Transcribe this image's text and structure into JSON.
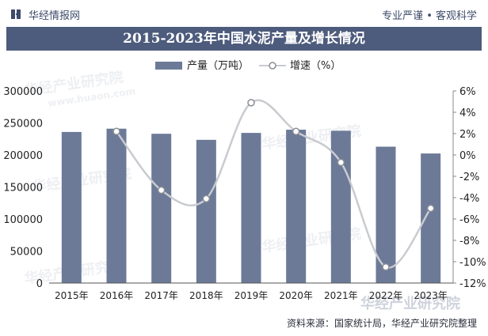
{
  "header": {
    "brand": "华经情报网",
    "slogan": "专业严谨 • 客观科学"
  },
  "watermark": {
    "cn": "华经产业研究院",
    "url": "www.huaon.com"
  },
  "footer": {
    "source": "资料来源：国家统计局，华经产业研究院整理"
  },
  "colors": {
    "bar": "#6c7a98",
    "line": "#c9cbd0",
    "title_bg": "#4d5b7c"
  },
  "chart_data": {
    "type": "bar",
    "title": "2015-2023年中国水泥产量及增长情况",
    "categories": [
      "2015年",
      "2016年",
      "2017年",
      "2018年",
      "2019年",
      "2020年",
      "2021年",
      "2022年",
      "2023年"
    ],
    "series": [
      {
        "name": "产量（万吨）",
        "type": "bar",
        "axis": "left",
        "values": [
          235919,
          241031,
          233084,
          223610,
          234431,
          239470,
          237809,
          212927,
          202300
        ]
      },
      {
        "name": "增速（%）",
        "type": "line",
        "axis": "right",
        "values": [
          null,
          2.2,
          -3.3,
          -4.1,
          4.9,
          2.2,
          -0.7,
          -10.5,
          -5.0
        ]
      }
    ],
    "y_left": {
      "min": 0,
      "max": 300000,
      "ticks": [
        "0",
        "50000",
        "100000",
        "150000",
        "200000",
        "250000",
        "300000"
      ]
    },
    "y_right": {
      "min": -12,
      "max": 6,
      "ticks": [
        "-12%",
        "-10%",
        "-8%",
        "-6%",
        "-4%",
        "-2%",
        "0%",
        "2%",
        "4%",
        "6%"
      ]
    },
    "grid": false,
    "legend": "top-center"
  }
}
